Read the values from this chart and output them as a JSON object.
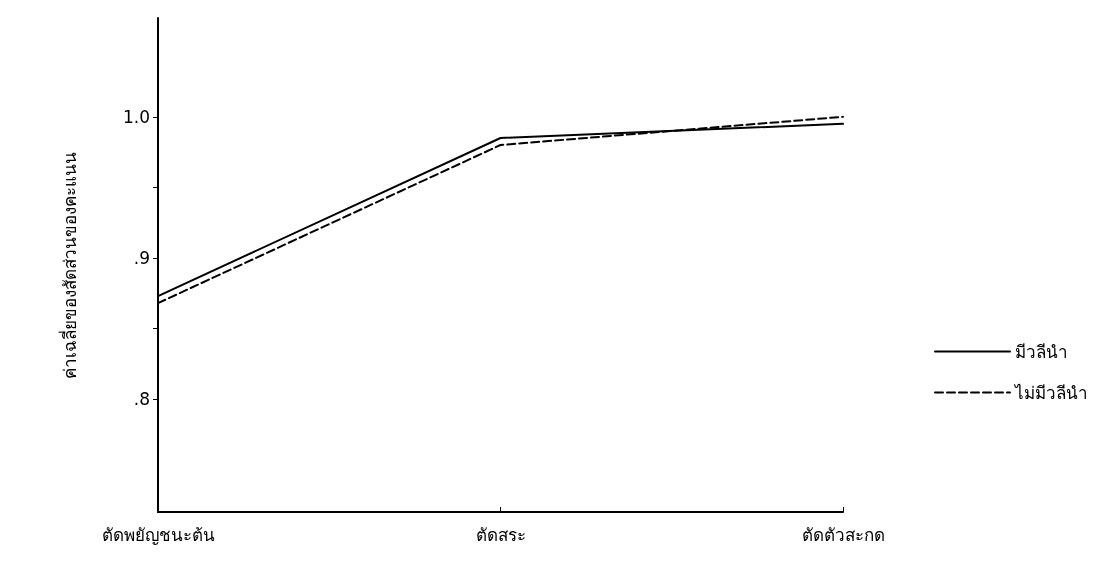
{
  "chart_data": {
    "type": "line",
    "ylabel": "ค่าเฉลี่ยของสัดส่วนของคะแนน",
    "categories": [
      "ตัดพยัญชนะต้น",
      "ตัดสระ",
      "ตัดตัวสะกด"
    ],
    "series": [
      {
        "name": "มีวลีนำ",
        "color": "#000000",
        "line_style": "solid",
        "values": [
          0.873,
          0.985,
          0.995
        ]
      },
      {
        "name": "ไม่มีวลีนำ",
        "color": "#000000",
        "line_style": "dashed",
        "values": [
          0.868,
          0.98,
          1.0
        ]
      }
    ],
    "ylim": [
      0.72,
      1.07
    ],
    "yticks": [
      {
        "value": 0.8,
        "label": ".8"
      },
      {
        "value": 0.85,
        "label": null
      },
      {
        "value": 0.9,
        "label": ".9"
      },
      {
        "value": 0.95,
        "label": null
      },
      {
        "value": 1.0,
        "label": "1.0"
      }
    ],
    "grid": false,
    "legend": "right",
    "marker": "none"
  }
}
